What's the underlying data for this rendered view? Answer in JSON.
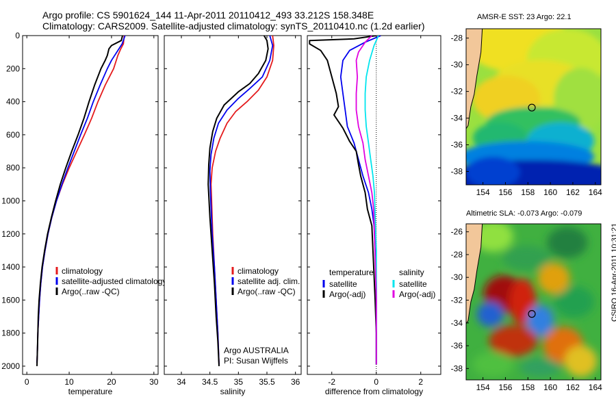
{
  "header": {
    "line1": "Argo profile: CS 5901624_144 11-Apr-2011 20110412_493 33.212S 158.348E",
    "line2": "Climatology: CARS2009. Satellite-adjusted climatology: synTS_20110410.nc (1.2d earlier)"
  },
  "credit": "CSIRO 16-Apr-2011 10:31:21",
  "colors": {
    "red": "#e41a1c",
    "blue": "#0000ee",
    "black": "#000000",
    "cyan": "#00e5ee",
    "magenta": "#e000e0",
    "land": "#f2c79a"
  },
  "chart_data": [
    {
      "type": "line",
      "xlabel": "temperature",
      "ylabel": "",
      "xlim": [
        -1,
        31
      ],
      "ylim": [
        2050,
        0
      ],
      "x_ticks": [
        0,
        10,
        20,
        30
      ],
      "y_ticks": [
        0,
        200,
        400,
        600,
        800,
        1000,
        1200,
        1400,
        1600,
        1800,
        2000
      ],
      "legend": [
        "climatology",
        "satellite-adjusted climatology",
        "Argo(..raw -QC)"
      ],
      "series": [
        {
          "name": "climatology",
          "color": "#e41a1c",
          "points": [
            [
              23,
              0
            ],
            [
              22.8,
              50
            ],
            [
              22.2,
              80
            ],
            [
              21.5,
              120
            ],
            [
              20.5,
              200
            ],
            [
              18.5,
              300
            ],
            [
              16.8,
              400
            ],
            [
              15.3,
              500
            ],
            [
              13.6,
              600
            ],
            [
              11.8,
              700
            ],
            [
              10,
              800
            ],
            [
              8.4,
              900
            ],
            [
              7,
              1000
            ],
            [
              5.9,
              1100
            ],
            [
              5,
              1200
            ],
            [
              4.3,
              1300
            ],
            [
              3.7,
              1400
            ],
            [
              3.3,
              1500
            ],
            [
              3,
              1600
            ],
            [
              2.8,
              1700
            ],
            [
              2.6,
              1800
            ],
            [
              2.5,
              1900
            ],
            [
              2.4,
              1980
            ]
          ]
        },
        {
          "name": "satellite-adjusted climatology",
          "color": "#0000ee",
          "points": [
            [
              23.2,
              0
            ],
            [
              22.5,
              50
            ],
            [
              21.5,
              90
            ],
            [
              20,
              150
            ],
            [
              19,
              200
            ],
            [
              17.3,
              300
            ],
            [
              15.7,
              400
            ],
            [
              14.3,
              500
            ],
            [
              12.7,
              600
            ],
            [
              11.2,
              700
            ],
            [
              9.7,
              800
            ],
            [
              8.3,
              900
            ],
            [
              7,
              1000
            ],
            [
              5.9,
              1100
            ],
            [
              5,
              1200
            ],
            [
              4.3,
              1300
            ],
            [
              3.7,
              1400
            ],
            [
              3.3,
              1500
            ],
            [
              3,
              1600
            ],
            [
              2.8,
              1700
            ],
            [
              2.6,
              1800
            ],
            [
              2.5,
              1900
            ],
            [
              2.4,
              1980
            ]
          ]
        },
        {
          "name": "Argo(..raw -QC)",
          "color": "#000000",
          "points": [
            [
              22.6,
              0
            ],
            [
              22.3,
              30
            ],
            [
              20,
              60
            ],
            [
              19.4,
              80
            ],
            [
              19,
              120
            ],
            [
              18.5,
              150
            ],
            [
              17.5,
              200
            ],
            [
              16,
              300
            ],
            [
              14.7,
              400
            ],
            [
              13.5,
              500
            ],
            [
              12.1,
              600
            ],
            [
              10.6,
              700
            ],
            [
              9.2,
              800
            ],
            [
              7.9,
              900
            ],
            [
              6.8,
              1000
            ],
            [
              5.8,
              1100
            ],
            [
              4.9,
              1200
            ],
            [
              4.2,
              1300
            ],
            [
              3.6,
              1400
            ],
            [
              3.2,
              1500
            ],
            [
              2.9,
              1600
            ],
            [
              2.7,
              1700
            ],
            [
              2.6,
              1800
            ],
            [
              2.5,
              1900
            ],
            [
              2.4,
              2000
            ]
          ]
        }
      ]
    },
    {
      "type": "line",
      "xlabel": "salinity",
      "ylabel": "",
      "xlim": [
        33.7,
        36.1
      ],
      "ylim": [
        2050,
        0
      ],
      "x_ticks": [
        34,
        34.5,
        35,
        35.5,
        36
      ],
      "legend": [
        "climatology",
        "satellite adj. clim.",
        "Argo(..raw -QC)"
      ],
      "annotation": [
        "Argo AUSTRALIA",
        "PI: Susan Wijffels"
      ],
      "series": [
        {
          "name": "climatology",
          "color": "#e41a1c",
          "points": [
            [
              35.6,
              0
            ],
            [
              35.62,
              60
            ],
            [
              35.6,
              150
            ],
            [
              35.5,
              250
            ],
            [
              35.35,
              330
            ],
            [
              35.15,
              400
            ],
            [
              34.95,
              460
            ],
            [
              34.8,
              530
            ],
            [
              34.68,
              620
            ],
            [
              34.6,
              700
            ],
            [
              34.54,
              800
            ],
            [
              34.52,
              900
            ],
            [
              34.53,
              1000
            ],
            [
              34.55,
              1200
            ],
            [
              34.58,
              1400
            ],
            [
              34.61,
              1600
            ],
            [
              34.64,
              1800
            ],
            [
              34.66,
              1990
            ]
          ]
        },
        {
          "name": "satellite adj. clim.",
          "color": "#0000ee",
          "points": [
            [
              35.55,
              0
            ],
            [
              35.6,
              60
            ],
            [
              35.55,
              150
            ],
            [
              35.42,
              250
            ],
            [
              35.2,
              320
            ],
            [
              35,
              380
            ],
            [
              34.8,
              450
            ],
            [
              34.65,
              530
            ],
            [
              34.57,
              620
            ],
            [
              34.52,
              720
            ],
            [
              34.5,
              820
            ],
            [
              34.51,
              950
            ],
            [
              34.54,
              1200
            ],
            [
              34.58,
              1400
            ],
            [
              34.61,
              1600
            ],
            [
              34.64,
              1800
            ],
            [
              34.66,
              1990
            ]
          ]
        },
        {
          "name": "Argo(..raw -QC)",
          "color": "#000000",
          "points": [
            [
              35.45,
              0
            ],
            [
              35.5,
              30
            ],
            [
              35.52,
              80
            ],
            [
              35.48,
              150
            ],
            [
              35.35,
              230
            ],
            [
              35.2,
              290
            ],
            [
              35,
              340
            ],
            [
              34.75,
              420
            ],
            [
              34.62,
              500
            ],
            [
              34.55,
              580
            ],
            [
              34.5,
              680
            ],
            [
              34.48,
              780
            ],
            [
              34.47,
              900
            ],
            [
              34.5,
              1100
            ],
            [
              34.54,
              1300
            ],
            [
              34.58,
              1500
            ],
            [
              34.61,
              1700
            ],
            [
              34.64,
              1850
            ],
            [
              34.66,
              2000
            ]
          ]
        }
      ]
    },
    {
      "type": "line",
      "xlabel": "difference from climatology",
      "ylabel": "",
      "xlim": [
        -3.1,
        2.9
      ],
      "ylim": [
        2050,
        0
      ],
      "x_ticks": [
        -2,
        0,
        2
      ],
      "legend": [
        {
          "group": "temperature",
          "items": [
            "satellite",
            "Argo(-adj)"
          ]
        },
        {
          "group": "salinity",
          "items": [
            "satellite",
            "Argo(-adj)"
          ]
        }
      ],
      "series": [
        {
          "name": "satellite",
          "group": "temperature",
          "color": "#0000ee",
          "points": [
            [
              0.2,
              0
            ],
            [
              -0.5,
              40
            ],
            [
              -1.2,
              90
            ],
            [
              -1.5,
              150
            ],
            [
              -1.6,
              250
            ],
            [
              -1.5,
              350
            ],
            [
              -1.4,
              450
            ],
            [
              -1.3,
              550
            ],
            [
              -1.0,
              650
            ],
            [
              -0.8,
              750
            ],
            [
              -0.6,
              850
            ],
            [
              -0.35,
              950
            ],
            [
              -0.2,
              1050
            ],
            [
              -0.1,
              1150
            ],
            [
              -0.05,
              1300
            ],
            [
              0,
              1500
            ],
            [
              0,
              1700
            ],
            [
              0,
              1990
            ]
          ]
        },
        {
          "name": "Argo(-adj)",
          "group": "temperature",
          "color": "#000000",
          "points": [
            [
              0,
              0
            ],
            [
              -1.0,
              20
            ],
            [
              -3.0,
              30
            ],
            [
              -3.0,
              50
            ],
            [
              -2.5,
              90
            ],
            [
              -2.2,
              150
            ],
            [
              -2.0,
              250
            ],
            [
              -1.8,
              350
            ],
            [
              -1.7,
              430
            ],
            [
              -1.9,
              480
            ],
            [
              -1.5,
              560
            ],
            [
              -1.2,
              640
            ],
            [
              -0.9,
              700
            ],
            [
              -0.8,
              780
            ],
            [
              -0.7,
              850
            ],
            [
              -0.5,
              950
            ],
            [
              -0.4,
              1050
            ],
            [
              -0.2,
              1150
            ],
            [
              -0.15,
              1300
            ],
            [
              -0.1,
              1450
            ],
            [
              -0.05,
              1600
            ],
            [
              0,
              1800
            ],
            [
              0,
              1990
            ]
          ]
        },
        {
          "name": "satellite",
          "group": "salinity",
          "color": "#00e5ee",
          "points": [
            [
              0.1,
              0
            ],
            [
              -0.1,
              60
            ],
            [
              -0.3,
              150
            ],
            [
              -0.45,
              250
            ],
            [
              -0.5,
              350
            ],
            [
              -0.5,
              450
            ],
            [
              -0.45,
              550
            ],
            [
              -0.35,
              650
            ],
            [
              -0.25,
              750
            ],
            [
              -0.15,
              850
            ],
            [
              -0.08,
              950
            ],
            [
              -0.05,
              1100
            ],
            [
              0,
              1300
            ],
            [
              0,
              1600
            ],
            [
              0,
              1990
            ]
          ]
        },
        {
          "name": "Argo(-adj)",
          "group": "salinity",
          "color": "#e000e0",
          "points": [
            [
              -0.2,
              0
            ],
            [
              -0.5,
              40
            ],
            [
              -0.8,
              100
            ],
            [
              -0.9,
              150
            ],
            [
              -0.85,
              250
            ],
            [
              -0.9,
              350
            ],
            [
              -0.9,
              450
            ],
            [
              -0.8,
              550
            ],
            [
              -0.6,
              650
            ],
            [
              -0.5,
              750
            ],
            [
              -0.35,
              850
            ],
            [
              -0.2,
              950
            ],
            [
              -0.12,
              1050
            ],
            [
              -0.08,
              1200
            ],
            [
              -0.04,
              1400
            ],
            [
              0,
              1600
            ],
            [
              0,
              1990
            ]
          ]
        }
      ]
    },
    {
      "type": "heatmap",
      "title": "AMSR-E SST: 23 Argo: 22.1",
      "xlim": [
        152.5,
        164.5
      ],
      "ylim": [
        -39,
        -27.3
      ],
      "x_ticks": [
        154,
        156,
        158,
        160,
        162,
        164
      ],
      "y_ticks": [
        -28,
        -30,
        -32,
        -34,
        -36,
        -38
      ],
      "marker": {
        "lon": 158.35,
        "lat": -33.21
      }
    },
    {
      "type": "heatmap",
      "title": "Altimetric SLA: -0.073 Argo: -0.079",
      "xlim": [
        152.5,
        164.5
      ],
      "ylim": [
        -39,
        -25.3
      ],
      "x_ticks": [
        154,
        156,
        158,
        160,
        162,
        164
      ],
      "y_ticks": [
        -26,
        -28,
        -30,
        -32,
        -34,
        -36,
        -38
      ],
      "marker": {
        "lon": 158.35,
        "lat": -33.21
      }
    }
  ]
}
